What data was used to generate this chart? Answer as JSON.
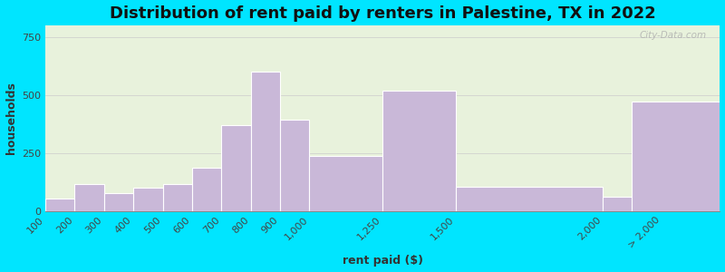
{
  "title": "Distribution of rent paid by renters in Palestine, TX in 2022",
  "xlabel": "rent paid ($)",
  "ylabel": "households",
  "bar_left_edges": [
    100,
    200,
    300,
    400,
    500,
    600,
    700,
    800,
    900,
    1000,
    1250,
    1500,
    2000,
    2100
  ],
  "bar_widths": [
    100,
    100,
    100,
    100,
    100,
    100,
    100,
    100,
    100,
    250,
    250,
    500,
    100,
    300
  ],
  "values": [
    55,
    115,
    75,
    100,
    115,
    185,
    370,
    600,
    395,
    235,
    520,
    105,
    60,
    470
  ],
  "bar_color": "#c9b8d8",
  "bar_edge_color": "#ffffff",
  "ylim": [
    0,
    800
  ],
  "yticks": [
    0,
    250,
    500,
    750
  ],
  "xtick_positions": [
    100,
    200,
    300,
    400,
    500,
    600,
    700,
    800,
    900,
    1000,
    1250,
    1500,
    2000,
    2200
  ],
  "xtick_labels": [
    "100",
    "200",
    "300",
    "400",
    "500",
    "600",
    "700",
    "800",
    "900",
    "1,000",
    "1,250",
    "1,500",
    "2,000",
    "> 2,000"
  ],
  "xlim_left": 100,
  "xlim_right": 2400,
  "bg_outer": "#00e5ff",
  "bg_inner_gradient_top": "#e8f0d8",
  "bg_inner_gradient_bottom": "#dff0e8",
  "title_fontsize": 13,
  "axis_label_fontsize": 9,
  "tick_fontsize": 8,
  "watermark": "City-Data.com"
}
